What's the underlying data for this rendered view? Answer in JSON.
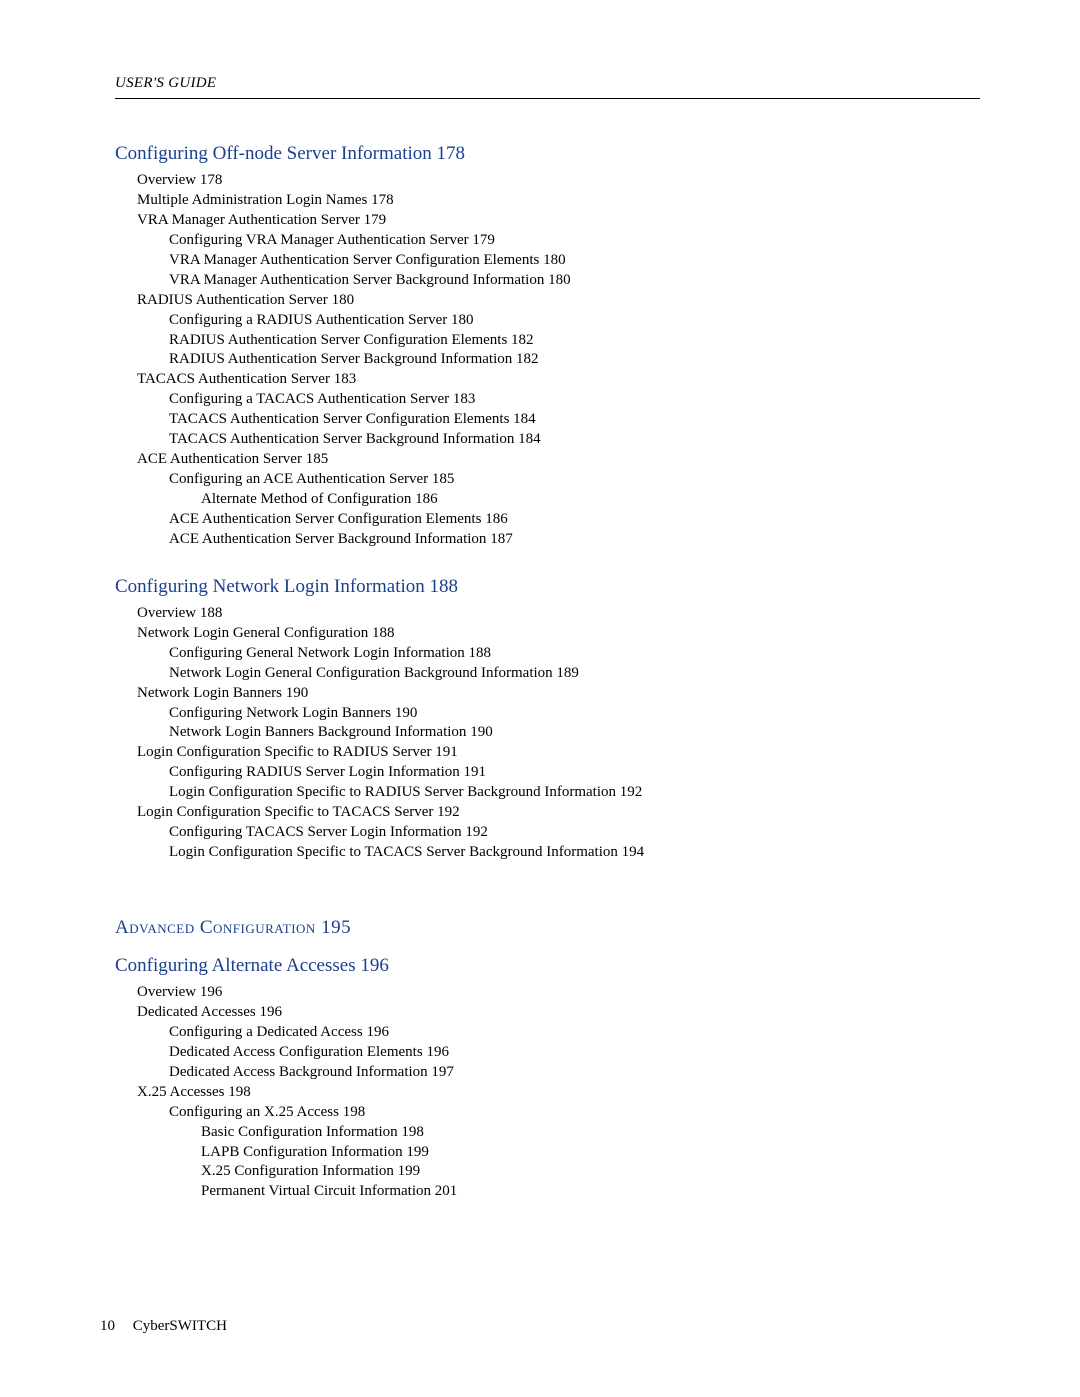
{
  "header": "USER'S GUIDE",
  "footer": {
    "page": "10",
    "product": "CyberSWITCH"
  },
  "colors": {
    "heading": "#1a3f8f",
    "text": "#000000",
    "background": "#ffffff",
    "rule": "#000000"
  },
  "typography": {
    "body_fontsize": 15,
    "heading_fontsize": 19,
    "font_family": "Palatino / Book Antiqua",
    "header_style": "italic",
    "part_heading_style": "small-caps"
  },
  "sections": [
    {
      "title": "Configuring Off-node Server Information",
      "page": "178",
      "items": [
        {
          "level": 0,
          "text": "Overview",
          "page": "178"
        },
        {
          "level": 0,
          "text": "Multiple Administration Login Names",
          "page": "178"
        },
        {
          "level": 0,
          "text": "VRA Manager Authentication Server",
          "page": "179"
        },
        {
          "level": 1,
          "text": "Configuring VRA Manager Authentication Server",
          "page": "179"
        },
        {
          "level": 1,
          "text": "VRA Manager Authentication Server Configuration Elements",
          "page": "180"
        },
        {
          "level": 1,
          "text": "VRA Manager Authentication Server Background Information",
          "page": "180"
        },
        {
          "level": 0,
          "text": "RADIUS Authentication Server",
          "page": "180"
        },
        {
          "level": 1,
          "text": "Configuring a RADIUS Authentication Server",
          "page": "180"
        },
        {
          "level": 1,
          "text": "RADIUS Authentication Server Configuration Elements",
          "page": "182"
        },
        {
          "level": 1,
          "text": "RADIUS Authentication Server Background Information",
          "page": "182"
        },
        {
          "level": 0,
          "text": "TACACS Authentication Server",
          "page": "183"
        },
        {
          "level": 1,
          "text": "Configuring a TACACS Authentication Server",
          "page": "183"
        },
        {
          "level": 1,
          "text": "TACACS Authentication Server Configuration Elements",
          "page": "184"
        },
        {
          "level": 1,
          "text": "TACACS Authentication Server Background Information",
          "page": "184"
        },
        {
          "level": 0,
          "text": "ACE Authentication Server",
          "page": "185"
        },
        {
          "level": 1,
          "text": "Configuring an ACE Authentication Server",
          "page": "185"
        },
        {
          "level": 2,
          "text": "Alternate Method of Configuration",
          "page": "186"
        },
        {
          "level": 1,
          "text": "ACE Authentication Server Configuration Elements",
          "page": "186"
        },
        {
          "level": 1,
          "text": "ACE Authentication Server Background Information",
          "page": "187"
        }
      ]
    },
    {
      "title": "Configuring Network Login Information",
      "page": "188",
      "items": [
        {
          "level": 0,
          "text": "Overview",
          "page": "188"
        },
        {
          "level": 0,
          "text": "Network Login General Configuration",
          "page": "188"
        },
        {
          "level": 1,
          "text": "Configuring General Network Login Information",
          "page": "188"
        },
        {
          "level": 1,
          "text": "Network Login General Configuration Background Information",
          "page": "189"
        },
        {
          "level": 0,
          "text": "Network Login Banners",
          "page": "190"
        },
        {
          "level": 1,
          "text": "Configuring Network Login Banners",
          "page": "190"
        },
        {
          "level": 1,
          "text": "Network Login Banners Background Information",
          "page": "190"
        },
        {
          "level": 0,
          "text": "Login Configuration Specific to RADIUS Server",
          "page": "191"
        },
        {
          "level": 1,
          "text": "Configuring RADIUS Server Login Information",
          "page": "191"
        },
        {
          "level": 1,
          "text": "Login Configuration Specific to RADIUS Server Background Information",
          "page": "192"
        },
        {
          "level": 0,
          "text": "Login Configuration Specific to TACACS Server",
          "page": "192"
        },
        {
          "level": 1,
          "text": "Configuring TACACS Server Login Information",
          "page": "192"
        },
        {
          "level": 1,
          "text": "Login Configuration Specific to TACACS Server Background Information",
          "page": "194"
        }
      ]
    }
  ],
  "part": {
    "title": "Advanced Configuration",
    "page": "195"
  },
  "sections2": [
    {
      "title": "Configuring Alternate Accesses",
      "page": "196",
      "items": [
        {
          "level": 0,
          "text": "Overview",
          "page": "196"
        },
        {
          "level": 0,
          "text": "Dedicated Accesses",
          "page": "196"
        },
        {
          "level": 1,
          "text": "Configuring a Dedicated Access",
          "page": "196"
        },
        {
          "level": 1,
          "text": "Dedicated Access Configuration Elements",
          "page": "196"
        },
        {
          "level": 1,
          "text": "Dedicated Access Background Information",
          "page": "197"
        },
        {
          "level": 0,
          "text": "X.25 Accesses",
          "page": "198"
        },
        {
          "level": 1,
          "text": "Configuring an X.25 Access",
          "page": "198"
        },
        {
          "level": 2,
          "text": "Basic Configuration Information",
          "page": "198"
        },
        {
          "level": 2,
          "text": "LAPB Configuration Information",
          "page": "199"
        },
        {
          "level": 2,
          "text": "X.25 Configuration Information",
          "page": "199"
        },
        {
          "level": 2,
          "text": "Permanent Virtual Circuit Information",
          "page": "201"
        }
      ]
    }
  ]
}
